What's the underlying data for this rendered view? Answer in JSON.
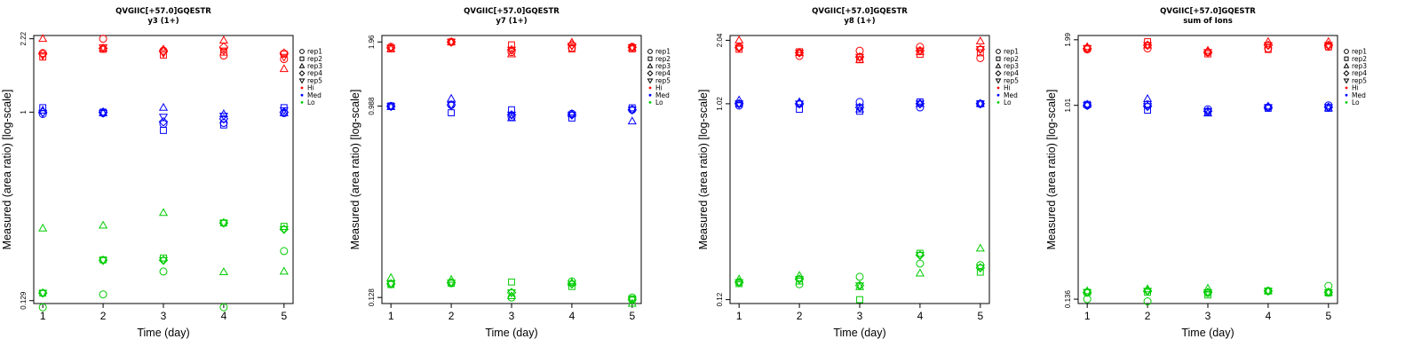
{
  "chart_data": [
    {
      "type": "scatter",
      "title": "QVGIIC[+57.0]GQESTR",
      "subtitle": "y3 (1+)",
      "xlabel": "Time (day)",
      "ylabel": "Measured (area ratio) [log-scale]",
      "yscale": "log",
      "ylim": [
        0.125,
        2.3
      ],
      "y_ticks": [
        "0.129",
        "1",
        "2.22"
      ],
      "x": [
        1,
        2,
        3,
        4,
        5
      ],
      "legend": [
        "rep1",
        "rep2",
        "rep3",
        "rep4",
        "rep5",
        "Hi",
        "Med",
        "Lo"
      ],
      "legend_position": "right",
      "series": [
        {
          "name": "Hi",
          "color": "#ff0000",
          "reps": [
            [
              1.9,
              2.22,
              1.95,
              1.85,
              1.78
            ],
            [
              1.82,
              1.98,
              1.86,
              1.92,
              1.88
            ],
            [
              2.22,
              2.0,
              1.98,
              2.18,
              1.6
            ],
            [
              1.88,
              2.0,
              1.93,
              2.03,
              1.9
            ],
            [
              1.85,
              2.02,
              1.9,
              1.95,
              1.82
            ]
          ]
        },
        {
          "name": "Med",
          "color": "#0000ff",
          "reps": [
            [
              0.98,
              0.99,
              0.88,
              0.89,
              0.99
            ],
            [
              1.05,
              1.0,
              0.82,
              0.87,
              1.05
            ],
            [
              1.02,
              0.99,
              1.05,
              0.98,
              0.99
            ],
            [
              1.0,
              1.0,
              0.9,
              0.93,
              1.0
            ],
            [
              0.99,
              0.99,
              0.95,
              0.96,
              1.02
            ]
          ]
        },
        {
          "name": "Lo",
          "color": "#00cc00",
          "reps": [
            [
              0.12,
              0.138,
              0.177,
              0.12,
              0.221
            ],
            [
              0.14,
              0.201,
              0.205,
              0.3,
              0.289
            ],
            [
              0.283,
              0.292,
              0.335,
              0.176,
              0.177
            ],
            [
              0.14,
              0.2,
              0.2,
              0.3,
              0.28
            ],
            [
              0.14,
              0.2,
              0.2,
              0.3,
              0.28
            ]
          ]
        }
      ]
    },
    {
      "type": "scatter",
      "title": "QVGIIC[+57.0]GQESTR",
      "subtitle": "y7 (1+)",
      "xlabel": "Time (day)",
      "ylabel": "Measured (area ratio) [log-scale]",
      "yscale": "log",
      "ylim": [
        0.12,
        2.1
      ],
      "y_ticks": [
        "0.128",
        "0.988",
        "1.96"
      ],
      "x": [
        1,
        2,
        3,
        4,
        5
      ],
      "legend": [
        "rep1",
        "rep2",
        "rep3",
        "rep4",
        "rep5",
        "Hi",
        "Med",
        "Lo"
      ],
      "legend_position": "right",
      "series": [
        {
          "name": "Hi",
          "color": "#ff0000",
          "reps": [
            [
              1.86,
              1.96,
              1.76,
              1.84,
              1.86
            ],
            [
              1.82,
              1.96,
              1.9,
              1.82,
              1.82
            ],
            [
              1.82,
              1.96,
              1.72,
              1.95,
              1.84
            ],
            [
              1.84,
              1.96,
              1.8,
              1.9,
              1.85
            ],
            [
              1.84,
              1.96,
              1.8,
              1.88,
              1.85
            ]
          ]
        },
        {
          "name": "Med",
          "color": "#0000ff",
          "reps": [
            [
              0.988,
              1.0,
              0.88,
              0.91,
              0.95
            ],
            [
              0.99,
              0.92,
              0.95,
              0.87,
              0.97
            ],
            [
              0.98,
              1.07,
              0.87,
              0.91,
              0.84
            ],
            [
              0.985,
              1.0,
              0.9,
              0.9,
              0.95
            ],
            [
              0.985,
              1.0,
              0.9,
              0.9,
              0.95
            ]
          ]
        },
        {
          "name": "Lo",
          "color": "#00cc00",
          "reps": [
            [
              0.148,
              0.149,
              0.128,
              0.152,
              0.128
            ],
            [
              0.147,
              0.149,
              0.151,
              0.144,
              0.126
            ],
            [
              0.158,
              0.155,
              0.13,
              0.15,
              0.12
            ],
            [
              0.148,
              0.15,
              0.135,
              0.148,
              0.125
            ],
            [
              0.148,
              0.15,
              0.135,
              0.148,
              0.125
            ]
          ]
        }
      ]
    },
    {
      "type": "scatter",
      "title": "QVGIIC[+57.0]GQESTR",
      "subtitle": "y8 (1+)",
      "xlabel": "Time (day)",
      "ylabel": "Measured (area ratio) [log-scale]",
      "yscale": "log",
      "ylim": [
        0.115,
        2.15
      ],
      "y_ticks": [
        "0.12",
        "1.02",
        "2.04"
      ],
      "x": [
        1,
        2,
        3,
        4,
        5
      ],
      "legend": [
        "rep1",
        "rep2",
        "rep3",
        "rep4",
        "rep5",
        "Hi",
        "Med",
        "Lo"
      ],
      "legend_position": "right",
      "series": [
        {
          "name": "Hi",
          "color": "#ff0000",
          "reps": [
            [
              1.9,
              1.72,
              1.82,
              1.9,
              1.68
            ],
            [
              1.85,
              1.8,
              1.65,
              1.75,
              1.78
            ],
            [
              2.04,
              1.78,
              1.65,
              1.8,
              2.02
            ],
            [
              1.88,
              1.78,
              1.7,
              1.82,
              1.85
            ],
            [
              1.88,
              1.78,
              1.7,
              1.82,
              1.85
            ]
          ]
        },
        {
          "name": "Med",
          "color": "#0000ff",
          "reps": [
            [
              1.0,
              1.02,
              1.04,
              0.98,
              1.02
            ],
            [
              1.02,
              0.96,
              0.94,
              1.04,
              1.02
            ],
            [
              1.06,
              1.04,
              0.96,
              1.02,
              1.02
            ],
            [
              1.02,
              1.02,
              0.98,
              1.02,
              1.02
            ],
            [
              1.02,
              1.02,
              0.98,
              1.02,
              1.02
            ]
          ]
        },
        {
          "name": "Lo",
          "color": "#00cc00",
          "reps": [
            [
              0.145,
              0.142,
              0.154,
              0.178,
              0.175
            ],
            [
              0.143,
              0.147,
              0.12,
              0.199,
              0.162
            ],
            [
              0.15,
              0.156,
              0.138,
              0.16,
              0.21
            ],
            [
              0.145,
              0.15,
              0.14,
              0.195,
              0.17
            ],
            [
              0.145,
              0.15,
              0.14,
              0.195,
              0.17
            ]
          ]
        }
      ]
    },
    {
      "type": "scatter",
      "title": "QVGIIC[+57.0]GQESTR",
      "subtitle": "sum of Ions",
      "xlabel": "Time (day)",
      "ylabel": "Measured (area ratio) [log-scale]",
      "yscale": "log",
      "ylim": [
        0.13,
        2.08
      ],
      "y_ticks": [
        "0.136",
        "1.01",
        "1.99"
      ],
      "x": [
        1,
        2,
        3,
        4,
        5
      ],
      "legend": [
        "rep1",
        "rep2",
        "rep3",
        "rep4",
        "rep5",
        "Hi",
        "Med",
        "Lo"
      ],
      "legend_position": "right",
      "series": [
        {
          "name": "Hi",
          "color": "#ff0000",
          "reps": [
            [
              1.8,
              1.82,
              1.75,
              1.82,
              1.85
            ],
            [
              1.82,
              1.95,
              1.72,
              1.8,
              1.85
            ],
            [
              1.85,
              1.88,
              1.78,
              1.95,
              1.95
            ],
            [
              1.82,
              1.88,
              1.75,
              1.88,
              1.88
            ],
            [
              1.82,
              1.88,
              1.75,
              1.88,
              1.88
            ]
          ]
        },
        {
          "name": "Med",
          "color": "#0000ff",
          "reps": [
            [
              1.01,
              1.02,
              0.97,
              0.99,
              1.01
            ],
            [
              1.02,
              0.96,
              0.94,
              0.98,
              0.98
            ],
            [
              1.02,
              1.08,
              0.93,
              1.0,
              0.98
            ],
            [
              1.01,
              1.0,
              0.95,
              0.99,
              0.99
            ],
            [
              1.01,
              1.0,
              0.95,
              0.99,
              0.99
            ]
          ]
        },
        {
          "name": "Lo",
          "color": "#00cc00",
          "reps": [
            [
              0.136,
              0.133,
              0.145,
              0.148,
              0.156
            ],
            [
              0.146,
              0.146,
              0.142,
              0.148,
              0.145
            ],
            [
              0.148,
              0.151,
              0.152,
              0.148,
              0.146
            ],
            [
              0.146,
              0.148,
              0.146,
              0.148,
              0.146
            ],
            [
              0.146,
              0.148,
              0.146,
              0.148,
              0.146
            ]
          ]
        }
      ]
    }
  ]
}
